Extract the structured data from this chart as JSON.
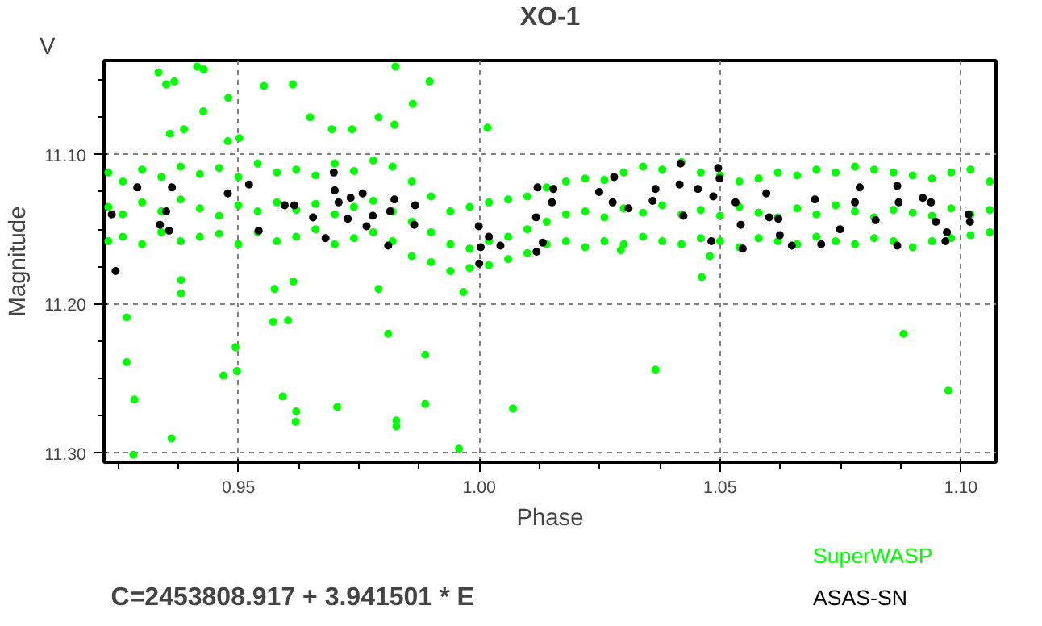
{
  "chart_data": {
    "type": "scatter",
    "title": "XO-1",
    "xlabel": "Phase",
    "ylabel": "Magnitude",
    "annotations": [
      "V",
      "C=2453808.917 + 3.941501 * E"
    ],
    "xlim": [
      0.9221,
      1.1073
    ],
    "ylim": [
      11.306,
      11.037
    ],
    "xticks": [
      {
        "value": 0.925,
        "label": null
      },
      {
        "value": 0.9375,
        "label": null
      },
      0.95,
      {
        "value": 0.9625,
        "label": null
      },
      {
        "value": 0.975,
        "label": null
      },
      {
        "value": 0.9875,
        "label": null
      },
      {
        "value": 1.0,
        "label": "1.00"
      },
      {
        "value": 1.0125,
        "label": null
      },
      {
        "value": 1.025,
        "label": null
      },
      {
        "value": 1.0375,
        "label": null
      },
      1.05,
      {
        "value": 1.0625,
        "label": null
      },
      {
        "value": 1.075,
        "label": null
      },
      {
        "value": 1.0875,
        "label": null
      },
      {
        "value": 1.1,
        "label": "1.10"
      }
    ],
    "yticks": [
      {
        "value": 11.05,
        "label": null
      },
      {
        "value": 11.075,
        "label": null
      },
      {
        "value": 11.1,
        "label": "11.10"
      },
      {
        "value": 11.125,
        "label": null
      },
      {
        "value": 11.15,
        "label": null
      },
      {
        "value": 11.175,
        "label": null
      },
      {
        "value": 11.2,
        "label": "11.20"
      },
      {
        "value": 11.225,
        "label": null
      },
      {
        "value": 11.25,
        "label": null
      },
      {
        "value": 11.275,
        "label": null
      },
      {
        "value": 11.3,
        "label": "11.30"
      }
    ],
    "grid": true,
    "legend": "bottom right",
    "marker": "circle",
    "series": [
      {
        "name": "SuperWASP",
        "color": "#00ff00",
        "x": [
          0.923,
          0.926,
          0.93,
          0.934,
          0.938,
          0.942,
          0.946,
          0.95,
          0.954,
          0.958,
          0.962,
          0.966,
          0.97,
          0.974,
          0.978,
          0.982,
          0.986,
          0.99,
          0.994,
          0.998,
          1.002,
          1.006,
          1.01,
          1.014,
          1.018,
          1.022,
          1.026,
          1.03,
          1.034,
          1.038,
          1.042,
          1.046,
          1.05,
          1.054,
          1.058,
          1.062,
          1.066,
          1.07,
          1.074,
          1.078,
          1.082,
          1.086,
          1.09,
          1.094,
          1.098,
          1.102,
          1.106,
          0.923,
          0.926,
          0.93,
          0.934,
          0.938,
          0.942,
          0.946,
          0.95,
          0.954,
          0.958,
          0.962,
          0.966,
          0.97,
          0.974,
          0.978,
          0.982,
          0.986,
          0.99,
          0.994,
          0.998,
          1.002,
          1.006,
          1.01,
          1.014,
          1.018,
          1.022,
          1.026,
          1.03,
          1.034,
          1.038,
          1.042,
          1.046,
          1.05,
          1.054,
          1.058,
          1.062,
          1.066,
          1.07,
          1.074,
          1.078,
          1.082,
          1.086,
          1.09,
          1.094,
          1.098,
          1.102,
          1.106,
          0.923,
          0.926,
          0.93,
          0.934,
          0.938,
          0.942,
          0.946,
          0.95,
          0.954,
          0.958,
          0.962,
          0.966,
          0.97,
          0.974,
          0.978,
          0.982,
          0.986,
          0.99,
          0.994,
          0.998,
          1.002,
          1.006,
          1.01,
          1.014,
          1.018,
          1.022,
          1.026,
          1.03,
          1.034,
          1.038,
          1.042,
          1.046,
          1.05,
          1.054,
          1.058,
          1.062,
          1.066,
          1.07,
          1.074,
          1.078,
          1.082,
          1.086,
          1.09,
          1.094,
          1.098,
          1.102,
          1.106,
          0.9334,
          0.935,
          0.9367,
          0.9414,
          0.9428,
          0.9427,
          0.9479,
          0.9553,
          0.9613,
          0.9649,
          0.9694,
          0.9736,
          0.9791,
          0.9824,
          0.9826,
          0.9862,
          0.9897,
          1.0017,
          0.9358,
          0.9387,
          0.9478,
          0.9502,
          0.9268,
          0.9268,
          0.9284,
          0.9282,
          0.9361,
          0.9381,
          0.9381,
          0.9469,
          0.9494,
          0.9497,
          0.9575,
          0.9572,
          0.9603,
          0.9592,
          0.962,
          0.9619,
          0.9614,
          0.9705,
          0.9791,
          0.9811,
          0.9828,
          0.9828,
          0.9888,
          0.9888,
          0.9958,
          0.9967,
          1.007,
          1.0366,
          1.0881,
          1.0974,
          1.0462,
          1.0479,
          1.0294
        ],
        "values": [
          11.112,
          11.118,
          11.11,
          11.115,
          11.108,
          11.113,
          11.109,
          11.115,
          11.106,
          11.112,
          11.11,
          11.114,
          11.106,
          11.111,
          11.104,
          11.108,
          11.118,
          11.128,
          11.138,
          11.135,
          11.132,
          11.13,
          11.128,
          11.122,
          11.118,
          11.116,
          11.117,
          11.112,
          11.108,
          11.11,
          11.105,
          11.112,
          11.114,
          11.118,
          11.116,
          11.112,
          11.114,
          11.11,
          11.112,
          11.108,
          11.11,
          11.112,
          11.114,
          11.116,
          11.112,
          11.11,
          11.118,
          11.135,
          11.14,
          11.132,
          11.138,
          11.13,
          11.136,
          11.141,
          11.134,
          11.138,
          11.132,
          11.137,
          11.133,
          11.14,
          11.135,
          11.131,
          11.138,
          11.145,
          11.152,
          11.16,
          11.163,
          11.158,
          11.155,
          11.15,
          11.145,
          11.14,
          11.138,
          11.142,
          11.136,
          11.139,
          11.134,
          11.14,
          11.137,
          11.141,
          11.135,
          11.139,
          11.142,
          11.136,
          11.14,
          11.134,
          11.138,
          11.142,
          11.137,
          11.139,
          11.141,
          11.136,
          11.14,
          11.137,
          11.158,
          11.155,
          11.16,
          11.152,
          11.158,
          11.155,
          11.153,
          11.16,
          11.152,
          11.158,
          11.155,
          11.15,
          11.16,
          11.156,
          11.152,
          11.158,
          11.168,
          11.172,
          11.178,
          11.176,
          11.174,
          11.17,
          11.166,
          11.16,
          11.158,
          11.162,
          11.158,
          11.16,
          11.155,
          11.158,
          11.16,
          11.156,
          11.158,
          11.162,
          11.156,
          11.158,
          11.16,
          11.155,
          11.158,
          11.16,
          11.156,
          11.158,
          11.162,
          11.158,
          11.156,
          11.154,
          11.152,
          11.045,
          11.053,
          11.051,
          11.041,
          11.043,
          11.071,
          11.062,
          11.054,
          11.053,
          11.075,
          11.083,
          11.083,
          11.075,
          11.08,
          11.041,
          11.066,
          11.051,
          11.082,
          11.086,
          11.083,
          11.091,
          11.089,
          11.209,
          11.239,
          11.264,
          11.301,
          11.29,
          11.184,
          11.193,
          11.248,
          11.229,
          11.245,
          11.19,
          11.212,
          11.211,
          11.262,
          11.272,
          11.279,
          11.185,
          11.269,
          11.19,
          11.22,
          11.278,
          11.282,
          11.234,
          11.267,
          11.297,
          11.192,
          11.27,
          11.244,
          11.22,
          11.258,
          11.182,
          11.168,
          11.164
        ]
      },
      {
        "name": "ASAS-SN",
        "color": "#000000",
        "x": [
          0.9237,
          0.9245,
          0.929,
          0.9337,
          0.935,
          0.9356,
          0.9362,
          0.9478,
          0.9522,
          0.9542,
          0.9596,
          0.9616,
          0.9655,
          0.9681,
          0.9698,
          0.97,
          0.9708,
          0.9727,
          0.9733,
          0.9758,
          0.9766,
          0.9779,
          0.9811,
          0.9815,
          0.9824,
          0.9867,
          0.9865,
          0.9999,
          1.0003,
          1.0,
          1.002,
          1.0044,
          1.0118,
          1.0119,
          1.0132,
          1.0121,
          1.0154,
          1.0151,
          1.0249,
          1.028,
          1.0277,
          1.031,
          1.0366,
          1.036,
          1.0418,
          1.0416,
          1.0424,
          1.0454,
          1.0482,
          1.0496,
          1.0499,
          1.0486,
          1.0532,
          1.0547,
          1.0543,
          1.0596,
          1.0602,
          1.0621,
          1.0624,
          1.0649,
          1.0697,
          1.071,
          1.0749,
          1.079,
          1.078,
          1.0823,
          1.0868,
          1.0871,
          1.0868,
          1.0921,
          1.0938,
          1.0948,
          1.0968,
          1.0971,
          1.1016,
          1.1019
        ],
        "values": [
          11.14,
          11.178,
          11.122,
          11.147,
          11.138,
          11.151,
          11.122,
          11.126,
          11.12,
          11.151,
          11.134,
          11.134,
          11.142,
          11.156,
          11.112,
          11.124,
          11.132,
          11.143,
          11.129,
          11.126,
          11.148,
          11.141,
          11.161,
          11.138,
          11.13,
          11.134,
          11.147,
          11.148,
          11.162,
          11.173,
          11.155,
          11.161,
          11.142,
          11.165,
          11.159,
          11.122,
          11.123,
          11.132,
          11.125,
          11.115,
          11.132,
          11.136,
          11.123,
          11.131,
          11.106,
          11.12,
          11.141,
          11.123,
          11.158,
          11.109,
          11.116,
          11.128,
          11.132,
          11.163,
          11.147,
          11.126,
          11.142,
          11.143,
          11.154,
          11.161,
          11.13,
          11.16,
          11.15,
          11.122,
          11.132,
          11.144,
          11.121,
          11.132,
          11.161,
          11.129,
          11.132,
          11.145,
          11.158,
          11.152,
          11.14,
          11.145
        ]
      }
    ]
  }
}
